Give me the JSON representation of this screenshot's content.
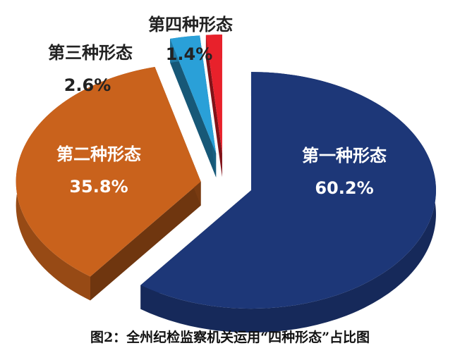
{
  "chart_data": {
    "type": "pie3d",
    "title": "图2：全州纪检监察机关运用“四种形态”占比图",
    "categories": [
      "第一种形态",
      "第二种形态",
      "第三种形态",
      "第四种形态"
    ],
    "values": [
      60.2,
      35.8,
      2.6,
      1.4
    ],
    "value_labels": [
      "60.2%",
      "35.8%",
      "2.6%",
      "1.4%"
    ],
    "colors": [
      "#1d3778",
      "#c9621c",
      "#2aa0d8",
      "#e8212b"
    ]
  }
}
